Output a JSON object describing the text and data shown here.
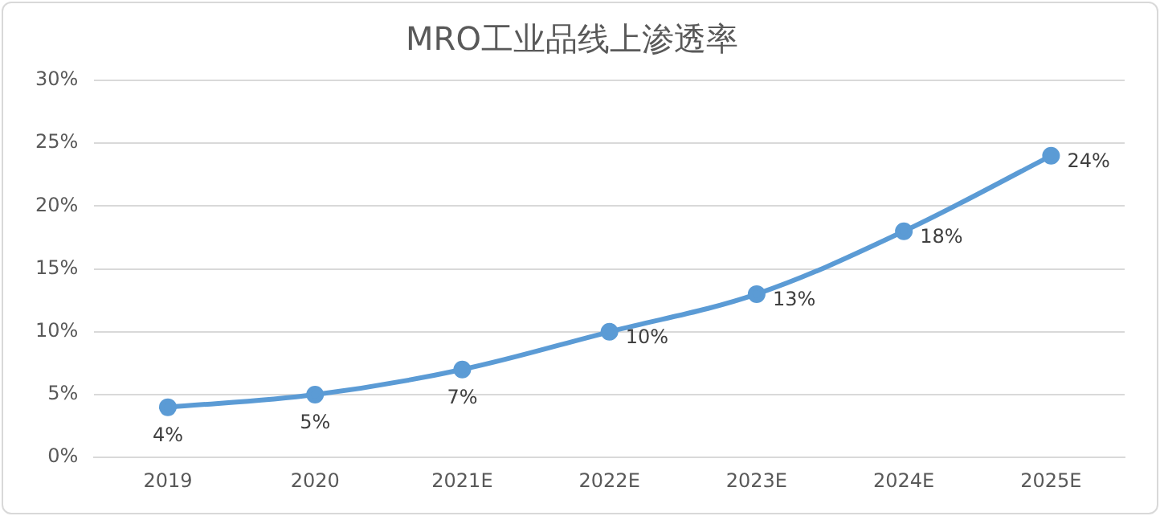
{
  "chart_data": {
    "type": "line",
    "title": "MRO工业品线上渗透率",
    "categories": [
      "2019",
      "2020",
      "2021E",
      "2022E",
      "2023E",
      "2024E",
      "2025E"
    ],
    "series": [
      {
        "color": "#5b9bd5",
        "values": [
          4,
          5,
          7,
          10,
          13,
          18,
          24
        ],
        "value_labels": [
          "4%",
          "5%",
          "7%",
          "10%",
          "13%",
          "18%",
          "24%"
        ]
      }
    ],
    "ylim": [
      0,
      30
    ],
    "yticks": [
      {
        "value": 0,
        "label": "0%"
      },
      {
        "value": 5,
        "label": "5%"
      },
      {
        "value": 10,
        "label": "10%"
      },
      {
        "value": 15,
        "label": "15%"
      },
      {
        "value": 20,
        "label": "20%"
      },
      {
        "value": 25,
        "label": "25%"
      },
      {
        "value": 30,
        "label": "30%"
      }
    ],
    "grid": "y",
    "marker": "circle",
    "line_style": "solid",
    "legend": false
  }
}
